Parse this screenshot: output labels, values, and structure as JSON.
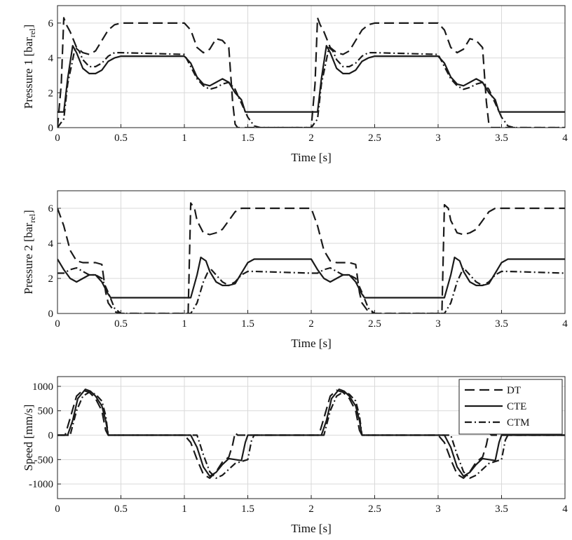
{
  "chart_data": [
    {
      "type": "line",
      "xlabel": "Time [s]",
      "ylabel": "Pressure 1 [bar",
      "ylabel_sub": "rel",
      "ylabel_close": "]",
      "xlim": [
        0,
        4
      ],
      "ylim": [
        0,
        7
      ],
      "x_ticks": [
        0,
        0.5,
        1,
        1.5,
        2,
        2.5,
        3,
        3.5,
        4
      ],
      "x_tick_labels": [
        "0",
        "0.5",
        "1",
        "1.5",
        "2",
        "2.5",
        "3",
        "3.5",
        "4"
      ],
      "y_ticks": [
        0,
        2,
        4,
        6
      ],
      "y_tick_labels": [
        "0",
        "2",
        "4",
        "6"
      ],
      "grid": true,
      "series": [
        {
          "name": "DT",
          "style": "dashed",
          "x": [
            0,
            0.03,
            0.05,
            0.07,
            0.1,
            0.15,
            0.2,
            0.25,
            0.3,
            0.35,
            0.4,
            0.45,
            0.5,
            0.6,
            0.8,
            1.0,
            1.05,
            1.1,
            1.15,
            1.2,
            1.25,
            1.3,
            1.35,
            1.38,
            1.4,
            1.42,
            1.5,
            2.0,
            2.03,
            2.05,
            2.07,
            2.1,
            2.15,
            2.2,
            2.25,
            2.3,
            2.35,
            2.4,
            2.45,
            2.5,
            2.6,
            2.8,
            3.0,
            3.05,
            3.1,
            3.15,
            3.2,
            3.25,
            3.3,
            3.35,
            3.38,
            3.4,
            3.42,
            3.5,
            4.0
          ],
          "y": [
            0,
            2.5,
            6.3,
            5.9,
            5.5,
            4.6,
            4.3,
            4.2,
            4.4,
            5.0,
            5.6,
            5.9,
            6.0,
            6.0,
            6.0,
            6.0,
            5.6,
            4.6,
            4.3,
            4.5,
            5.1,
            5.0,
            4.6,
            1.5,
            0.2,
            0,
            0,
            0,
            2.5,
            6.3,
            5.9,
            5.5,
            4.6,
            4.3,
            4.2,
            4.4,
            5.0,
            5.6,
            5.9,
            6.0,
            6.0,
            6.0,
            6.0,
            5.6,
            4.6,
            4.3,
            4.5,
            5.1,
            5.0,
            4.6,
            1.5,
            0.2,
            0,
            0,
            0
          ]
        },
        {
          "name": "CTE",
          "style": "solid",
          "x": [
            0,
            0.05,
            0.08,
            0.12,
            0.15,
            0.2,
            0.25,
            0.3,
            0.35,
            0.4,
            0.45,
            0.5,
            1.0,
            1.05,
            1.1,
            1.15,
            1.2,
            1.25,
            1.3,
            1.35,
            1.4,
            1.45,
            1.48,
            1.5,
            2.0,
            2.05,
            2.08,
            2.12,
            2.15,
            2.2,
            2.25,
            2.3,
            2.35,
            2.4,
            2.45,
            2.5,
            3.0,
            3.05,
            3.1,
            3.15,
            3.2,
            3.25,
            3.3,
            3.35,
            3.4,
            3.45,
            3.48,
            3.5,
            4.0
          ],
          "y": [
            0.9,
            0.9,
            2.8,
            4.7,
            4.3,
            3.4,
            3.1,
            3.1,
            3.3,
            3.8,
            4.0,
            4.1,
            4.1,
            3.7,
            2.9,
            2.5,
            2.4,
            2.6,
            2.8,
            2.6,
            2.0,
            1.6,
            0.9,
            0.9,
            0.9,
            0.9,
            2.8,
            4.7,
            4.3,
            3.4,
            3.1,
            3.1,
            3.3,
            3.8,
            4.0,
            4.1,
            4.1,
            3.7,
            2.9,
            2.5,
            2.4,
            2.6,
            2.8,
            2.6,
            2.0,
            1.6,
            0.9,
            0.9,
            0.9
          ]
        },
        {
          "name": "CTM",
          "style": "dashdot",
          "x": [
            0,
            0.05,
            0.08,
            0.14,
            0.17,
            0.2,
            0.25,
            0.3,
            0.35,
            0.4,
            0.45,
            0.5,
            1.0,
            1.05,
            1.1,
            1.15,
            1.2,
            1.25,
            1.3,
            1.35,
            1.4,
            1.45,
            1.5,
            1.55,
            1.6,
            2.0,
            2.05,
            2.08,
            2.14,
            2.17,
            2.2,
            2.25,
            2.3,
            2.35,
            2.4,
            2.45,
            2.5,
            3.0,
            3.05,
            3.1,
            3.15,
            3.2,
            3.25,
            3.3,
            3.35,
            3.4,
            3.45,
            3.5,
            3.55,
            3.6,
            4.0
          ],
          "y": [
            0,
            0.5,
            2.5,
            4.6,
            4.4,
            3.9,
            3.5,
            3.5,
            3.7,
            4.1,
            4.3,
            4.3,
            4.2,
            3.5,
            2.8,
            2.4,
            2.2,
            2.3,
            2.5,
            2.6,
            2.2,
            1.4,
            0.6,
            0.1,
            0,
            0,
            0.5,
            2.5,
            4.6,
            4.4,
            3.9,
            3.5,
            3.5,
            3.7,
            4.1,
            4.3,
            4.3,
            4.2,
            3.5,
            2.8,
            2.4,
            2.2,
            2.3,
            2.5,
            2.6,
            2.2,
            1.4,
            0.6,
            0.1,
            0,
            0
          ]
        }
      ]
    },
    {
      "type": "line",
      "xlabel": "Time [s]",
      "ylabel": "Pressure 2 [bar",
      "ylabel_sub": "rel",
      "ylabel_close": "]",
      "xlim": [
        0,
        4
      ],
      "ylim": [
        0,
        7
      ],
      "x_ticks": [
        0,
        0.5,
        1,
        1.5,
        2,
        2.5,
        3,
        3.5,
        4
      ],
      "x_tick_labels": [
        "0",
        "0.5",
        "1",
        "1.5",
        "2",
        "2.5",
        "3",
        "3.5",
        "4"
      ],
      "y_ticks": [
        0,
        2,
        4,
        6
      ],
      "y_tick_labels": [
        "0",
        "2",
        "4",
        "6"
      ],
      "grid": true,
      "series": [
        {
          "name": "DT",
          "style": "dashed",
          "x": [
            0,
            0.05,
            0.1,
            0.15,
            0.2,
            0.3,
            0.35,
            0.38,
            0.4,
            0.45,
            0.5,
            1.03,
            1.05,
            1.08,
            1.1,
            1.15,
            1.2,
            1.25,
            1.3,
            1.35,
            1.4,
            1.45,
            1.5,
            2.0,
            2.05,
            2.1,
            2.15,
            2.2,
            2.3,
            2.35,
            2.38,
            2.4,
            2.45,
            2.5,
            3.03,
            3.05,
            3.08,
            3.1,
            3.15,
            3.2,
            3.25,
            3.3,
            3.35,
            3.4,
            3.45,
            3.5,
            4.0
          ],
          "y": [
            6.0,
            5.0,
            3.6,
            3.0,
            2.9,
            2.9,
            2.8,
            1.2,
            0.6,
            0.1,
            0,
            0,
            6.3,
            6.0,
            5.3,
            4.6,
            4.5,
            4.6,
            4.8,
            5.3,
            5.8,
            6.0,
            6.0,
            6.0,
            5.0,
            3.6,
            3.0,
            2.9,
            2.9,
            2.8,
            1.2,
            0.6,
            0.1,
            0,
            0,
            6.2,
            6.0,
            5.3,
            4.6,
            4.5,
            4.6,
            4.8,
            5.3,
            5.8,
            6.0,
            6.0,
            6.0
          ]
        },
        {
          "name": "CTE",
          "style": "solid",
          "x": [
            0,
            0.05,
            0.1,
            0.15,
            0.2,
            0.25,
            0.3,
            0.35,
            0.4,
            0.42,
            1.05,
            1.1,
            1.13,
            1.17,
            1.2,
            1.25,
            1.3,
            1.35,
            1.4,
            1.45,
            1.5,
            1.55,
            2.0,
            2.05,
            2.1,
            2.15,
            2.2,
            2.25,
            2.3,
            2.35,
            2.4,
            2.42,
            3.05,
            3.1,
            3.13,
            3.17,
            3.2,
            3.25,
            3.3,
            3.35,
            3.4,
            3.45,
            3.5,
            3.55,
            4.0
          ],
          "y": [
            3.1,
            2.5,
            2.0,
            1.8,
            2.0,
            2.2,
            2.2,
            1.8,
            1.1,
            0.9,
            0.9,
            2.2,
            3.2,
            3.0,
            2.4,
            1.8,
            1.6,
            1.6,
            1.7,
            2.3,
            2.9,
            3.1,
            3.1,
            2.5,
            2.0,
            1.8,
            2.0,
            2.2,
            2.2,
            1.8,
            1.1,
            0.9,
            0.9,
            2.2,
            3.2,
            3.0,
            2.4,
            1.8,
            1.6,
            1.6,
            1.7,
            2.3,
            2.9,
            3.1,
            3.1
          ]
        },
        {
          "name": "CTM",
          "style": "dashdot",
          "x": [
            0,
            0.05,
            0.1,
            0.15,
            0.2,
            0.25,
            0.3,
            0.35,
            0.4,
            0.45,
            0.5,
            1.05,
            1.1,
            1.15,
            1.2,
            1.25,
            1.3,
            1.35,
            1.4,
            1.45,
            1.5,
            1.55,
            2.0,
            2.05,
            2.1,
            2.15,
            2.2,
            2.25,
            2.3,
            2.35,
            2.4,
            2.45,
            2.5,
            3.05,
            3.1,
            3.15,
            3.2,
            3.25,
            3.3,
            3.35,
            3.4,
            3.45,
            3.5,
            3.55,
            4.0
          ],
          "y": [
            2.3,
            2.3,
            2.5,
            2.6,
            2.4,
            2.2,
            2.2,
            2.0,
            1.2,
            0.3,
            0,
            0,
            0.6,
            1.8,
            2.6,
            2.2,
            1.8,
            1.6,
            1.8,
            2.2,
            2.4,
            2.4,
            2.3,
            2.3,
            2.5,
            2.6,
            2.4,
            2.2,
            2.2,
            2.0,
            1.2,
            0.3,
            0,
            0,
            0.6,
            1.8,
            2.6,
            2.2,
            1.8,
            1.6,
            1.8,
            2.2,
            2.4,
            2.4,
            2.3
          ]
        }
      ]
    },
    {
      "type": "line",
      "xlabel": "Time [s]",
      "ylabel": "Speed [mm/s]",
      "xlim": [
        0,
        4
      ],
      "ylim": [
        -1300,
        1200
      ],
      "x_ticks": [
        0,
        0.5,
        1,
        1.5,
        2,
        2.5,
        3,
        3.5,
        4
      ],
      "x_tick_labels": [
        "0",
        "0.5",
        "1",
        "1.5",
        "2",
        "2.5",
        "3",
        "3.5",
        "4"
      ],
      "y_ticks": [
        1000,
        500,
        0,
        -500,
        -1000
      ],
      "y_tick_labels": [
        "1000",
        "500",
        "0",
        "-500",
        "-1000"
      ],
      "grid": true,
      "legend_position": "top-right",
      "legend": [
        "DT",
        "CTE",
        "CTM"
      ],
      "series": [
        {
          "name": "DT",
          "style": "dashed",
          "x": [
            0,
            0.06,
            0.1,
            0.15,
            0.2,
            0.25,
            0.3,
            0.35,
            0.38,
            0.4,
            0.42,
            1.0,
            1.05,
            1.1,
            1.15,
            1.2,
            1.25,
            1.3,
            1.35,
            1.38,
            1.4,
            1.42,
            2.0,
            2.06,
            2.1,
            2.15,
            2.2,
            2.25,
            2.3,
            2.35,
            2.38,
            2.4,
            2.42,
            3.0,
            3.05,
            3.1,
            3.15,
            3.2,
            3.25,
            3.3,
            3.35,
            3.38,
            3.4,
            3.42,
            4.0
          ],
          "y": [
            0,
            0,
            350,
            800,
            920,
            880,
            750,
            500,
            100,
            0,
            0,
            0,
            -150,
            -500,
            -800,
            -880,
            -750,
            -550,
            -450,
            -200,
            50,
            0,
            0,
            0,
            350,
            800,
            920,
            880,
            750,
            500,
            100,
            0,
            0,
            0,
            -150,
            -500,
            -800,
            -880,
            -750,
            -550,
            -450,
            -200,
            50,
            0,
            0
          ]
        },
        {
          "name": "CTE",
          "style": "solid",
          "x": [
            0,
            0.08,
            0.12,
            0.16,
            0.22,
            0.26,
            0.3,
            0.35,
            0.38,
            0.4,
            0.42,
            1.05,
            1.1,
            1.15,
            1.2,
            1.25,
            1.3,
            1.35,
            1.4,
            1.45,
            1.48,
            1.5,
            2.08,
            2.12,
            2.16,
            2.22,
            2.26,
            2.3,
            2.35,
            2.38,
            2.4,
            2.42,
            3.05,
            3.1,
            3.15,
            3.2,
            3.25,
            3.3,
            3.35,
            3.4,
            3.45,
            3.48,
            3.5,
            4.0
          ],
          "y": [
            0,
            0,
            300,
            750,
            940,
            900,
            800,
            600,
            300,
            0,
            0,
            0,
            -250,
            -650,
            -840,
            -760,
            -600,
            -480,
            -500,
            -520,
            -150,
            0,
            0,
            300,
            750,
            940,
            900,
            800,
            600,
            300,
            0,
            0,
            0,
            -250,
            -650,
            -840,
            -760,
            -600,
            -480,
            -500,
            -520,
            -150,
            0,
            0
          ]
        },
        {
          "name": "CTM",
          "style": "dashdot",
          "x": [
            0,
            0.1,
            0.15,
            0.2,
            0.25,
            0.3,
            0.35,
            0.38,
            0.4,
            0.42,
            1.1,
            1.15,
            1.2,
            1.25,
            1.3,
            1.35,
            1.4,
            1.45,
            1.5,
            1.53,
            1.55,
            2.1,
            2.15,
            2.2,
            2.25,
            2.3,
            2.35,
            2.38,
            2.4,
            2.42,
            3.1,
            3.15,
            3.2,
            3.25,
            3.3,
            3.35,
            3.4,
            3.45,
            3.5,
            3.53,
            3.55,
            4.0
          ],
          "y": [
            0,
            0,
            500,
            800,
            880,
            840,
            700,
            400,
            0,
            0,
            0,
            -400,
            -750,
            -880,
            -820,
            -700,
            -580,
            -540,
            -500,
            -100,
            0,
            0,
            500,
            800,
            880,
            840,
            700,
            400,
            0,
            0,
            0,
            -400,
            -750,
            -880,
            -820,
            -700,
            -580,
            -540,
            -500,
            -100,
            0,
            0
          ]
        }
      ]
    }
  ],
  "colors": {
    "line": "#1a1a1a",
    "grid": "#d9d9d9",
    "axis": "#222222"
  }
}
